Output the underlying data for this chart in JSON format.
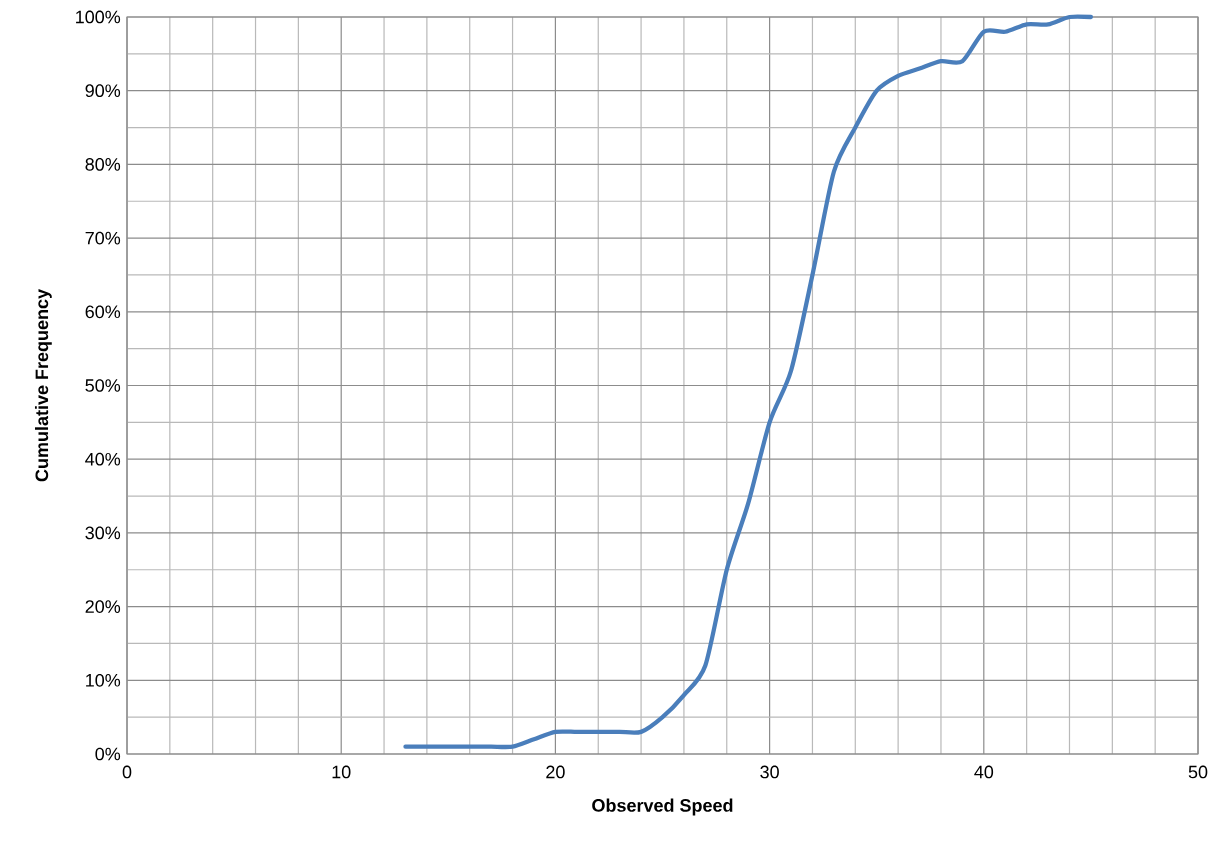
{
  "chart_data": {
    "type": "line",
    "xlabel": "Observed Speed",
    "ylabel": "Cumulative Frequency",
    "x": [
      13,
      14,
      15,
      16,
      17,
      18,
      19,
      20,
      21,
      22,
      23,
      24,
      25,
      26,
      27,
      28,
      29,
      30,
      31,
      32,
      33,
      34,
      35,
      36,
      37,
      38,
      39,
      40,
      41,
      42,
      43,
      44,
      45
    ],
    "series": [
      {
        "color": "#4a7ebb",
        "values": [
          1,
          1,
          1,
          1,
          1,
          1,
          2,
          3,
          3,
          3,
          3,
          3,
          5,
          8,
          12,
          25,
          34,
          45,
          52,
          65,
          79,
          85,
          90,
          92,
          93,
          94,
          94,
          98,
          98,
          99,
          99,
          100,
          100
        ]
      }
    ],
    "xlim": [
      0,
      50
    ],
    "ylim": [
      0,
      100
    ],
    "xticks": [
      0,
      10,
      20,
      30,
      40,
      50
    ],
    "yticks": [
      {
        "value": 0,
        "label": "0%"
      },
      {
        "value": 10,
        "label": "10%"
      },
      {
        "value": 20,
        "label": "20%"
      },
      {
        "value": 30,
        "label": "30%"
      },
      {
        "value": 40,
        "label": "40%"
      },
      {
        "value": 50,
        "label": "50%"
      },
      {
        "value": 60,
        "label": "60%"
      },
      {
        "value": 70,
        "label": "70%"
      },
      {
        "value": 80,
        "label": "80%"
      },
      {
        "value": 90,
        "label": "90%"
      },
      {
        "value": 100,
        "label": "100%"
      }
    ],
    "grid": true,
    "marker": "none",
    "line_style": "solid"
  }
}
